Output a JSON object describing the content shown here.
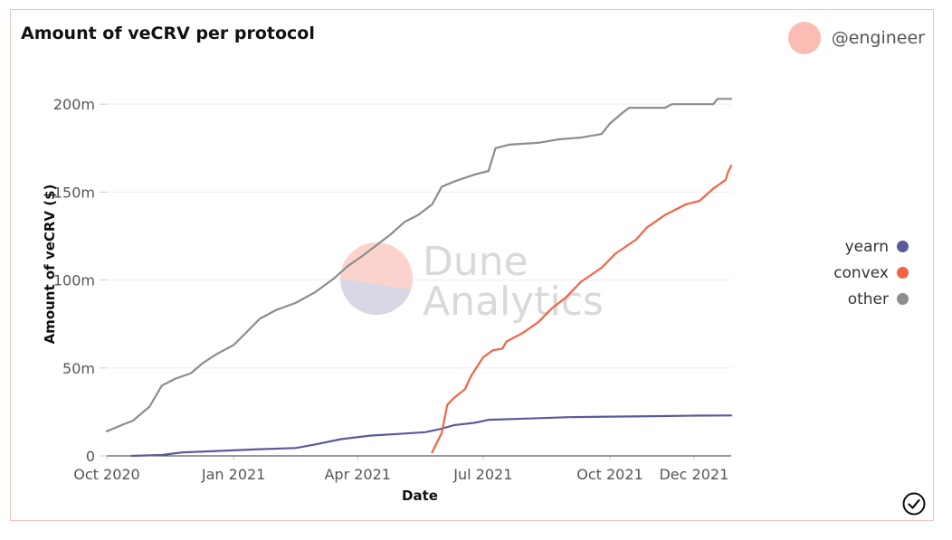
{
  "header": {
    "title": "Amount of veCRV per protocol",
    "author": "@engineer"
  },
  "watermark": {
    "line1": "Dune",
    "line2": "Analytics"
  },
  "colors": {
    "card_border": "#f2c4bb",
    "avatar": "#fbbcb3",
    "yearn": "#5a5a9a",
    "convex": "#f26444",
    "other": "#8c8c8c",
    "gridline": "#eeeeee"
  },
  "icons": {
    "status": "check-circle-icon"
  },
  "chart_data": {
    "type": "line",
    "xlabel": "Date",
    "ylabel": "Amount of veCRV ($)",
    "xlim": [
      "2020-10-01",
      "2021-12-28"
    ],
    "ylim": [
      0,
      215000000
    ],
    "grid": true,
    "legend_position": "right",
    "x_ticks": [
      {
        "date": "2020-10-01",
        "label": "Oct 2020"
      },
      {
        "date": "2021-01-01",
        "label": "Jan 2021"
      },
      {
        "date": "2021-04-01",
        "label": "Apr 2021"
      },
      {
        "date": "2021-07-01",
        "label": "Jul 2021"
      },
      {
        "date": "2021-10-01",
        "label": "Oct 2021"
      },
      {
        "date": "2021-12-01",
        "label": "Dec 2021"
      }
    ],
    "y_ticks": [
      {
        "value": 0,
        "label": "0"
      },
      {
        "value": 50000000,
        "label": "50m"
      },
      {
        "value": 100000000,
        "label": "100m"
      },
      {
        "value": 150000000,
        "label": "150m"
      },
      {
        "value": 200000000,
        "label": "200m"
      }
    ],
    "series": [
      {
        "name": "yearn",
        "color": "#5a5a9a",
        "points": [
          [
            "2020-10-19",
            0
          ],
          [
            "2020-11-10",
            500000
          ],
          [
            "2020-11-25",
            2000000
          ],
          [
            "2020-12-20",
            2800000
          ],
          [
            "2021-01-20",
            3800000
          ],
          [
            "2021-02-15",
            4500000
          ],
          [
            "2021-03-01",
            6500000
          ],
          [
            "2021-03-20",
            9500000
          ],
          [
            "2021-04-10",
            11500000
          ],
          [
            "2021-05-01",
            12500000
          ],
          [
            "2021-05-20",
            13500000
          ],
          [
            "2021-06-01",
            15500000
          ],
          [
            "2021-06-10",
            17500000
          ],
          [
            "2021-06-25",
            18800000
          ],
          [
            "2021-07-05",
            20500000
          ],
          [
            "2021-08-01",
            21200000
          ],
          [
            "2021-09-01",
            22000000
          ],
          [
            "2021-10-01",
            22300000
          ],
          [
            "2021-11-01",
            22600000
          ],
          [
            "2021-12-01",
            22900000
          ],
          [
            "2021-12-28",
            23000000
          ]
        ]
      },
      {
        "name": "convex",
        "color": "#f26444",
        "points": [
          [
            "2021-05-25",
            2000000
          ],
          [
            "2021-06-01",
            13000000
          ],
          [
            "2021-06-05",
            29000000
          ],
          [
            "2021-06-10",
            33000000
          ],
          [
            "2021-06-18",
            38000000
          ],
          [
            "2021-06-22",
            45000000
          ],
          [
            "2021-06-26",
            50000000
          ],
          [
            "2021-07-01",
            56000000
          ],
          [
            "2021-07-08",
            60000000
          ],
          [
            "2021-07-15",
            61000000
          ],
          [
            "2021-07-18",
            65000000
          ],
          [
            "2021-07-30",
            70000000
          ],
          [
            "2021-08-10",
            76000000
          ],
          [
            "2021-08-20",
            84000000
          ],
          [
            "2021-08-30",
            90000000
          ],
          [
            "2021-09-10",
            99000000
          ],
          [
            "2021-09-25",
            107000000
          ],
          [
            "2021-10-05",
            115000000
          ],
          [
            "2021-10-20",
            123000000
          ],
          [
            "2021-10-28",
            130000000
          ],
          [
            "2021-11-10",
            137000000
          ],
          [
            "2021-11-25",
            143000000
          ],
          [
            "2021-12-05",
            145000000
          ],
          [
            "2021-12-15",
            152000000
          ],
          [
            "2021-12-24",
            157000000
          ],
          [
            "2021-12-26",
            162000000
          ],
          [
            "2021-12-28",
            165000000
          ]
        ]
      },
      {
        "name": "other",
        "color": "#8c8c8c",
        "points": [
          [
            "2020-10-01",
            14000000
          ],
          [
            "2020-10-15",
            18500000
          ],
          [
            "2020-10-20",
            20000000
          ],
          [
            "2020-11-01",
            28000000
          ],
          [
            "2020-11-10",
            40000000
          ],
          [
            "2020-11-20",
            44000000
          ],
          [
            "2020-12-01",
            47000000
          ],
          [
            "2020-12-10",
            53000000
          ],
          [
            "2020-12-20",
            58000000
          ],
          [
            "2021-01-01",
            63000000
          ],
          [
            "2021-01-10",
            70000000
          ],
          [
            "2021-01-20",
            78000000
          ],
          [
            "2021-02-01",
            83000000
          ],
          [
            "2021-02-15",
            87000000
          ],
          [
            "2021-03-01",
            93000000
          ],
          [
            "2021-03-15",
            101000000
          ],
          [
            "2021-03-25",
            108000000
          ],
          [
            "2021-04-05",
            114000000
          ],
          [
            "2021-04-15",
            120000000
          ],
          [
            "2021-04-25",
            126000000
          ],
          [
            "2021-05-05",
            133000000
          ],
          [
            "2021-05-15",
            137000000
          ],
          [
            "2021-05-25",
            143000000
          ],
          [
            "2021-06-01",
            153000000
          ],
          [
            "2021-06-10",
            156000000
          ],
          [
            "2021-06-25",
            160000000
          ],
          [
            "2021-07-05",
            162000000
          ],
          [
            "2021-07-10",
            175000000
          ],
          [
            "2021-07-20",
            177000000
          ],
          [
            "2021-08-10",
            178000000
          ],
          [
            "2021-08-25",
            180000000
          ],
          [
            "2021-09-10",
            181000000
          ],
          [
            "2021-09-25",
            183000000
          ],
          [
            "2021-10-01",
            189000000
          ],
          [
            "2021-10-10",
            195000000
          ],
          [
            "2021-10-15",
            198000000
          ],
          [
            "2021-11-10",
            198000000
          ],
          [
            "2021-11-15",
            200000000
          ],
          [
            "2021-12-15",
            200000000
          ],
          [
            "2021-12-18",
            203000000
          ],
          [
            "2021-12-28",
            203000000
          ]
        ]
      }
    ]
  }
}
